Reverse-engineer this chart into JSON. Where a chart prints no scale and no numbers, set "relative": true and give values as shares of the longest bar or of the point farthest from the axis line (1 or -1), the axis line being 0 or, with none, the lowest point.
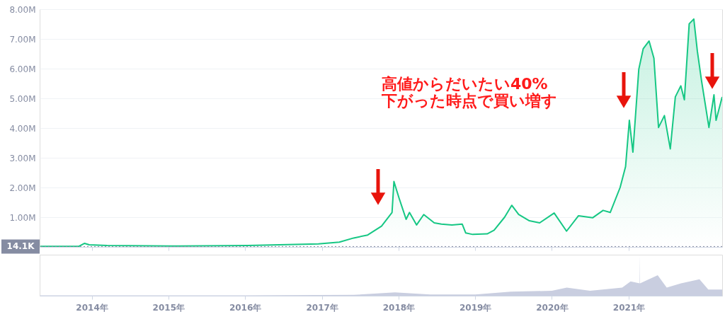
{
  "chart_data": [
    {
      "type": "area",
      "xlim": [
        "2013-04-28",
        "2022-03-22"
      ],
      "ylim": [
        0,
        8000000
      ],
      "yticks": [
        {
          "value": 1000000,
          "label": "1.00M"
        },
        {
          "value": 2000000,
          "label": "2.00M"
        },
        {
          "value": 3000000,
          "label": "3.00M"
        },
        {
          "value": 4000000,
          "label": "4.00M"
        },
        {
          "value": 5000000,
          "label": "5.00M"
        },
        {
          "value": 6000000,
          "label": "6.00M"
        },
        {
          "value": 7000000,
          "label": "7.00M"
        },
        {
          "value": 8000000,
          "label": "8.00M"
        }
      ],
      "xticks": [
        {
          "value": "2014-01-01",
          "label": null
        },
        {
          "value": "2015-01-01",
          "label": null
        },
        {
          "value": "2016-01-01",
          "label": null
        },
        {
          "value": "2017-01-01",
          "label": null
        },
        {
          "value": "2018-01-01",
          "label": null
        },
        {
          "value": "2019-01-01",
          "label": null
        },
        {
          "value": "2020-01-01",
          "label": null
        },
        {
          "value": "2021-01-01",
          "label": null
        }
      ],
      "tick_labels": "y",
      "grid": "y",
      "line_style": "solid",
      "x": [
        "2013-05-01",
        "2013-11-01",
        "2013-11-28",
        "2013-12-20",
        "2014-03-15",
        "2015-01-12",
        "2016-01-15",
        "2016-12-15",
        "2017-03-25",
        "2017-06-01",
        "2017-08-07",
        "2017-10-12",
        "2017-12-01",
        "2017-12-10",
        "2018-01-04",
        "2018-02-06",
        "2018-02-22",
        "2018-03-28",
        "2018-05-01",
        "2018-06-20",
        "2018-07-24",
        "2018-09-12",
        "2018-10-31",
        "2018-11-17",
        "2018-12-20",
        "2019-02-27",
        "2019-04-01",
        "2019-05-21",
        "2019-06-24",
        "2019-07-27",
        "2019-09-16",
        "2019-11-04",
        "2020-01-12",
        "2020-03-11",
        "2020-05-07",
        "2020-07-13",
        "2020-09-01",
        "2020-10-05",
        "2020-11-21",
        "2020-12-17",
        "2021-01-04",
        "2021-01-21",
        "2021-02-18",
        "2021-03-11",
        "2021-04-08",
        "2021-05-01",
        "2021-05-23",
        "2021-06-20",
        "2021-07-18",
        "2021-08-11",
        "2021-09-06",
        "2021-09-23",
        "2021-10-16",
        "2021-11-07",
        "2021-11-24",
        "2021-12-14",
        "2022-01-18",
        "2022-02-11",
        "2022-02-21",
        "2022-03-22"
      ],
      "series": [
        {
          "color": "#16c784",
          "values": [
            20000,
            20000,
            120000,
            70000,
            50000,
            30000,
            50000,
            100000,
            160000,
            300000,
            400000,
            700000,
            1160000,
            2200000,
            1630000,
            930000,
            1160000,
            740000,
            1090000,
            810000,
            770000,
            740000,
            770000,
            470000,
            420000,
            440000,
            560000,
            1000000,
            1400000,
            1090000,
            880000,
            810000,
            1140000,
            530000,
            1050000,
            980000,
            1230000,
            1160000,
            2000000,
            2700000,
            4260000,
            3190000,
            5980000,
            6670000,
            6930000,
            6350000,
            4020000,
            4420000,
            3300000,
            5050000,
            5420000,
            4950000,
            7510000,
            7670000,
            6580000,
            5580000,
            4020000,
            5120000,
            4260000,
            5050000
          ]
        }
      ],
      "ref_lines": [
        {
          "axis": "y",
          "value": 14100,
          "label": "14.1K",
          "color": "#858ca2",
          "line_style": "dotted"
        }
      ],
      "annotations": [
        "高値からだいたい40%\n下がった時点で買い増す"
      ]
    },
    {
      "type": "area",
      "relative": true,
      "xlim": [
        "2013-04-28",
        "2022-03-22"
      ],
      "xticks": [
        {
          "value": "2014-01-01",
          "label": "2014年"
        },
        {
          "value": "2015-01-01",
          "label": "2015年"
        },
        {
          "value": "2016-01-01",
          "label": "2016年"
        },
        {
          "value": "2017-01-01",
          "label": "2017年"
        },
        {
          "value": "2018-01-01",
          "label": "2018年"
        },
        {
          "value": "2019-01-01",
          "label": "2019年"
        },
        {
          "value": "2020-01-01",
          "label": "2020年"
        },
        {
          "value": "2021-01-01",
          "label": "2021年"
        }
      ],
      "tick_labels": "x",
      "grid": false,
      "x": [
        "2013-05-01",
        "2014-01-01",
        "2016-01-01",
        "2017-06-01",
        "2017-12-15",
        "2018-06-01",
        "2019-01-01",
        "2019-06-20",
        "2020-01-01",
        "2020-03-12",
        "2020-07-01",
        "2020-12-01",
        "2021-01-10",
        "2021-02-22",
        "2021-02-23",
        "2021-02-24",
        "2021-05-19",
        "2021-07-01",
        "2021-09-07",
        "2021-12-04",
        "2022-01-15",
        "2022-03-22"
      ],
      "series": [
        {
          "color": "#c9cee0",
          "values": [
            0.01,
            0.01,
            0.01,
            0.02,
            0.08,
            0.03,
            0.03,
            0.1,
            0.12,
            0.2,
            0.12,
            0.2,
            0.35,
            0.3,
            1.0,
            0.3,
            0.5,
            0.2,
            0.3,
            0.4,
            0.15,
            0.15
          ]
        }
      ]
    }
  ]
}
